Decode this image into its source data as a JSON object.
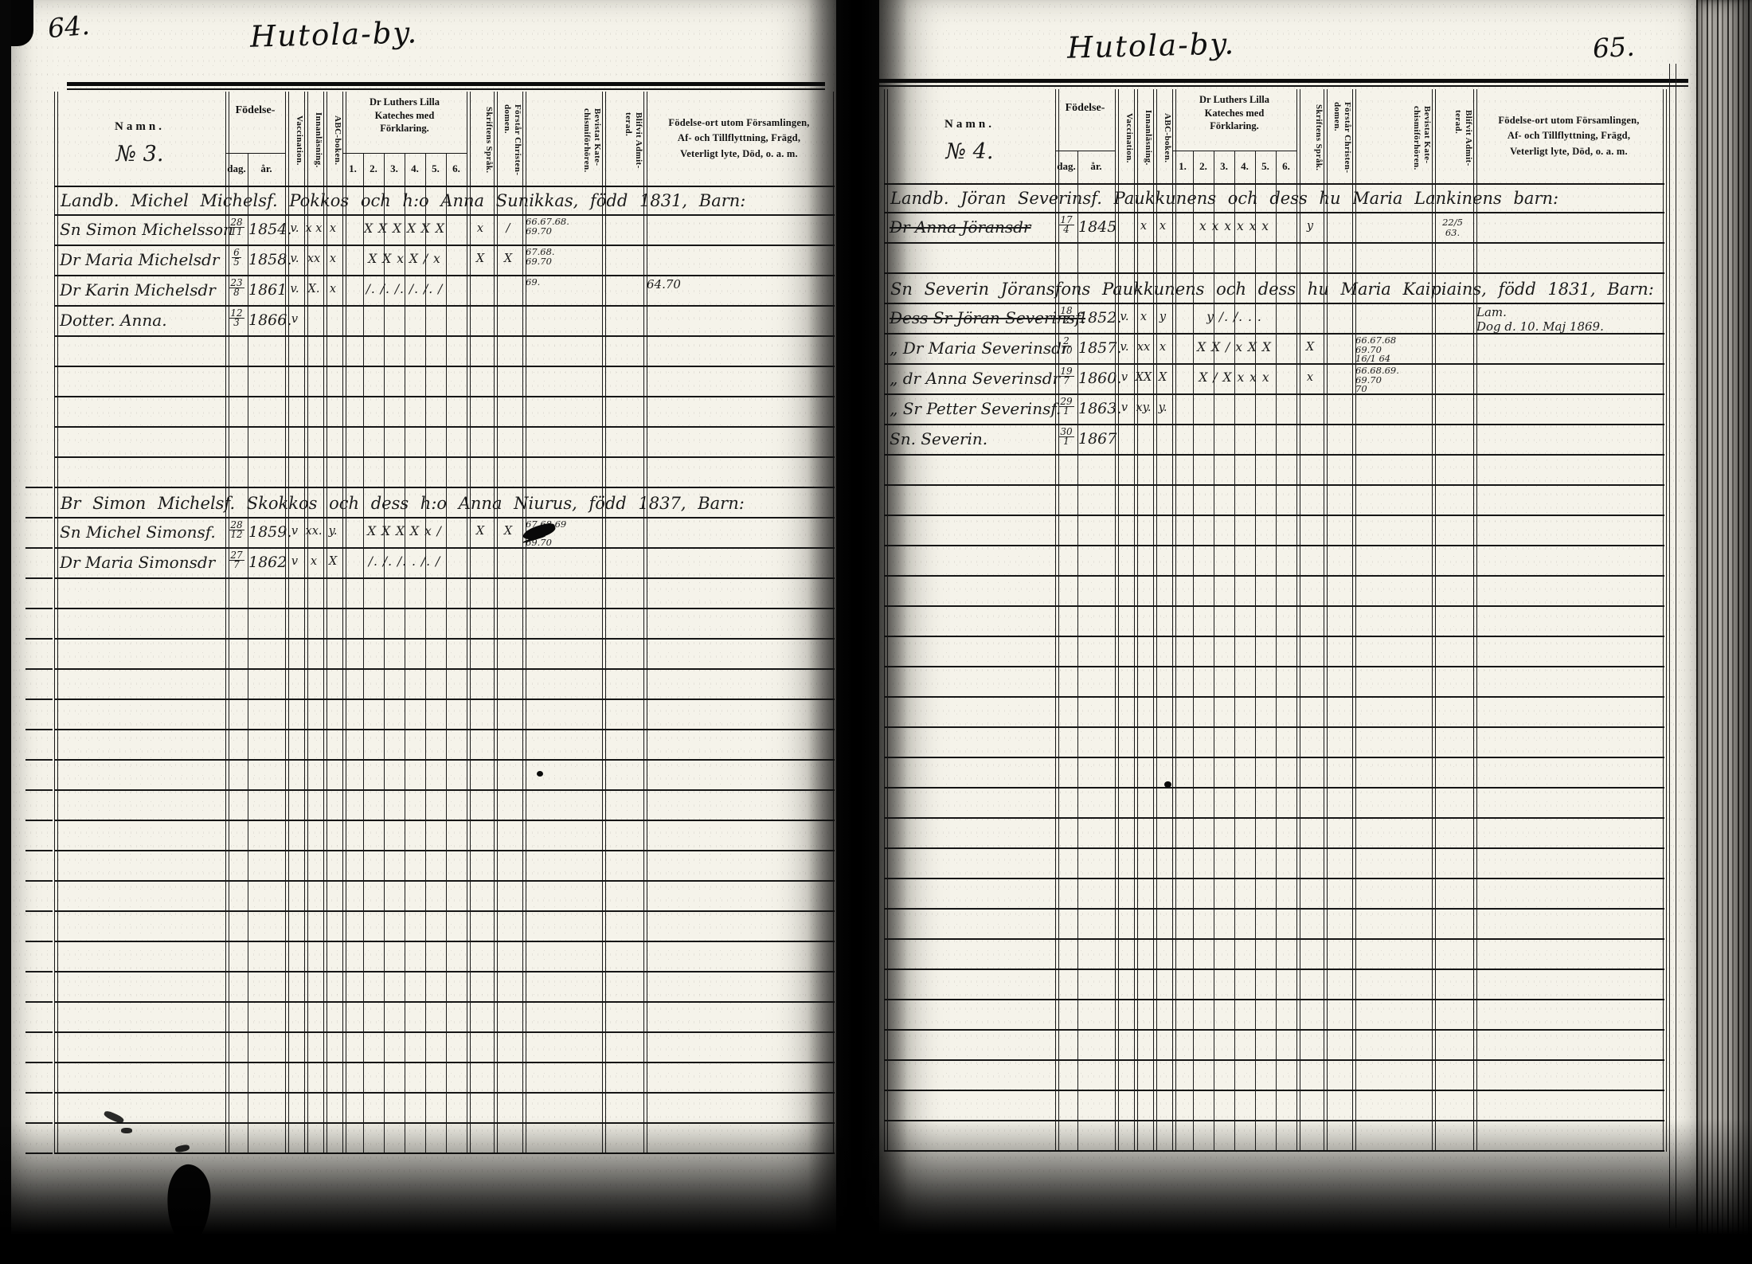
{
  "headers": {
    "namn": "Namn.",
    "fodelse": "Födelse-",
    "dag": "dag.",
    "ar": "år.",
    "vaccination": "Vaccination.",
    "innanlasning": "Innanläsning.",
    "abc_boken": "ABC-boken.",
    "katekes": "Dr Luthers Lilla\nKateches med\nFörklaring.",
    "katekes_sub": [
      "1.",
      "2.",
      "3.",
      "4.",
      "5.",
      "6."
    ],
    "skriftens_sprak": "Skriftens Språk.",
    "forstar_christendomen": "Förstår Christen-\ndomen.",
    "bevistat_katechismiforhoren": "Bevistat Kate-\nchismiförhören.",
    "blifvit_admitterad": "Blifvit Admit-\nterad.",
    "fodelseort": "Födelse-ort utom Församlingen,\nAf- och Tillflyttning, Frägd,\nVeterligt lyte, Död, o. a. m."
  },
  "left": {
    "page_number": "64.",
    "title": "Hutola-by.",
    "group_no": "№ 3.",
    "entries": [
      {
        "row": 1,
        "type": "family",
        "text": "Landb. Michel Michelsf. Pokkos och h:o Anna Sunikkas, född 1831, Barn:"
      },
      {
        "row": 2,
        "name": "Sn Simon Michelsson",
        "dag": "28",
        "mon": "11",
        "year": "1854.",
        "vacc": "v.",
        "innan": "x x",
        "abc": "x",
        "kat": "X X X X X X",
        "skrift": "x",
        "forstar": "/",
        "bevistat": "66.67.68.\n69.70"
      },
      {
        "row": 3,
        "name": "Dr Maria Michelsdr",
        "dag": "6",
        "mon": "5",
        "year": "1858.",
        "vacc": "v.",
        "innan": "xx",
        "abc": "x",
        "kat": "X X x X / x",
        "skrift": "X",
        "forstar": "X",
        "bevistat": "67.68.\n69.70"
      },
      {
        "row": 4,
        "name": "Dr Karin Michelsdr",
        "dag": "23",
        "mon": "8",
        "year": "1861",
        "vacc": "v.",
        "innan": "X.",
        "abc": "x",
        "kat": "/. /. /. /. /. /",
        "bevistat": "69.",
        "note": "64.70"
      },
      {
        "row": 5,
        "name": "Dotter. Anna.",
        "dag": "12",
        "mon": "3",
        "year": "1866.",
        "vacc": "v"
      },
      {
        "row": 11,
        "type": "family",
        "text": "Br Simon Michelsf. Skokkos och dess h:o Anna Niurus, född 1837, Barn:"
      },
      {
        "row": 12,
        "name": "Sn Michel Simonsf.",
        "dag": "28",
        "mon": "12",
        "year": "1859.",
        "vacc": "v",
        "innan": "xx.",
        "abc": "y.",
        "kat": "X X X X x /",
        "skrift": "X",
        "forstar": "X",
        "bevistat": "67.68.69\n70.\n69.70",
        "smudge": true
      },
      {
        "row": 13,
        "name": "Dr Maria Simonsdr",
        "dag": "27",
        "mon": "7",
        "year": "1862",
        "vacc": "v",
        "innan": "x",
        "abc": "X",
        "kat": "/. /. /. . /. /"
      }
    ]
  },
  "right": {
    "page_number": "65.",
    "title": "Hutola-by.",
    "group_no": "№ 4.",
    "entries": [
      {
        "row": 1,
        "type": "family",
        "text": "Landb. Jöran Severinsf. Paukkunens och dess hu Maria Lankinens barn:"
      },
      {
        "row": 2,
        "name": "Dr Anna Jöransdr",
        "struck": true,
        "dag": "17",
        "mon": "4",
        "year": "1845",
        "innan": "x",
        "abc": "x",
        "kat": "x x x x x x",
        "skrift": "y",
        "blifvit": "22/5\n63."
      },
      {
        "row": 4,
        "type": "family",
        "text": "Sn Severin Jöransfons Paukkunens och dess hu Maria Kaipiains, född 1831, Barn:"
      },
      {
        "row": 5,
        "name": "Dess Sr Jöran Severinsf.",
        "struck": true,
        "dag": "18",
        "mon": "2",
        "year": "1852.",
        "vacc": "v.",
        "innan": "x",
        "abc": "y",
        "kat": "y /. /. . .",
        "note": "Lam.\nDog d. 10. Maj 1869.",
        "note_ul": true
      },
      {
        "row": 6,
        "name": "„ Dr Maria Severinsdr",
        "dag": "2",
        "mon": "10",
        "year": "1857.",
        "vacc": "v.",
        "innan": "xx",
        "abc": "x",
        "kat": "X X / x X X",
        "skrift": "X",
        "bevistat": "66.67.68\n69.70\n16/1 64"
      },
      {
        "row": 7,
        "name": "„ dr Anna Severinsdr",
        "dag": "19",
        "mon": "7",
        "year": "1860.",
        "vacc": "v",
        "innan": "XX",
        "abc": "X",
        "kat": "X / X x x x",
        "skrift": "x",
        "bevistat": "66.68.69.\n69.70\n70"
      },
      {
        "row": 8,
        "name": "„ Sr Petter Severinsf.",
        "dag": "29",
        "mon": "1",
        "year": "1863.",
        "vacc": "v",
        "innan": "xy.",
        "abc": "y."
      },
      {
        "row": 9,
        "name": "Sn. Severin.",
        "dag": "30",
        "mon": "1",
        "year": "1867"
      }
    ]
  }
}
